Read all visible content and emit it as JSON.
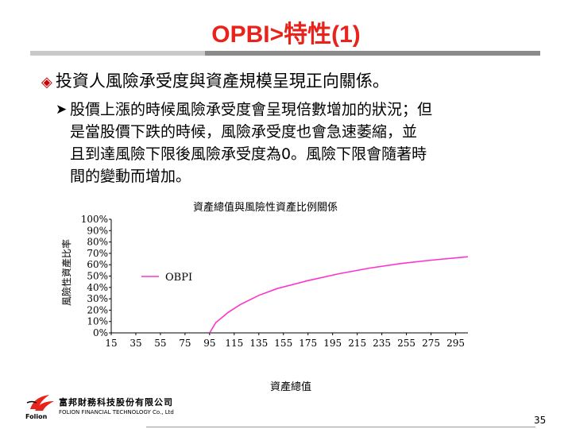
{
  "slide": {
    "title": "OPBI>特性(1)",
    "bullet_main": "投資人風險承受度與資產規模呈現正向關係。",
    "para_lines": [
      "股價上漲的時候風險承受度會呈現倍數增加的狀況；但",
      "是當股價下跌的時候，風險承受度也會急速萎縮，並",
      "且到達風險下限後風險承受度為0。風險下限會隨著時",
      "間的變動而增加。"
    ],
    "page_number": "35"
  },
  "logo": {
    "name_zh": "富邦財務科技股份有限公司",
    "name_en": "FOLION FINANCIAL TECHNOLOGY Co., Ltd",
    "brand": "Folion"
  },
  "colors": {
    "title": "#e8231b",
    "series": "#ff33cc"
  },
  "chart_data": {
    "type": "line",
    "title": "資產總值與風險性資產比例關係",
    "xlabel": "資產總值",
    "ylabel": "風險性資產比率",
    "x_ticks": [
      "15",
      "35",
      "55",
      "75",
      "95",
      "115",
      "135",
      "155",
      "175",
      "195",
      "215",
      "235",
      "255",
      "275",
      "295"
    ],
    "y_ticks": [
      "0%",
      "10%",
      "20%",
      "30%",
      "40%",
      "50%",
      "60%",
      "70%",
      "80%",
      "90%",
      "100%"
    ],
    "xlim": [
      15,
      305
    ],
    "ylim": [
      0,
      100
    ],
    "legend": "top-left",
    "series": [
      {
        "name": "OBPI",
        "x": [
          95,
          100,
          110,
          120,
          135,
          150,
          175,
          200,
          225,
          250,
          275,
          305
        ],
        "y": [
          0,
          9,
          18,
          25,
          33,
          39,
          46,
          52,
          57,
          61,
          64,
          67
        ]
      }
    ]
  }
}
